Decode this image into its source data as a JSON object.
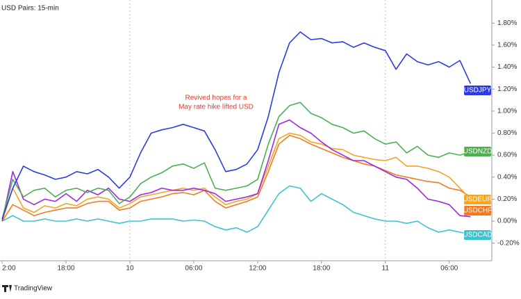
{
  "chart_data": {
    "type": "line",
    "title": "USD Pairs: 15-min",
    "annotation": [
      "Revived hopes for a",
      "May rate hike lifted USD"
    ],
    "watermark": "TradingView",
    "x": [
      12,
      13,
      14,
      15,
      16,
      17,
      18,
      19,
      20,
      21,
      22,
      23,
      24,
      25,
      26,
      27,
      28,
      29,
      30,
      31,
      32,
      33,
      34,
      35,
      36,
      37,
      38,
      39,
      40,
      41,
      42,
      43,
      44,
      45,
      46,
      47,
      48,
      49,
      50,
      51,
      52,
      53,
      54,
      55,
      56
    ],
    "xlim": [
      11.8,
      58
    ],
    "xticks": [
      {
        "value": 12,
        "label": "2:00"
      },
      {
        "value": 18,
        "label": "18:00"
      },
      {
        "value": 24,
        "label": "10"
      },
      {
        "value": 30,
        "label": "06:00"
      },
      {
        "value": 36,
        "label": "12:00"
      },
      {
        "value": 42,
        "label": "18:00"
      },
      {
        "value": 48,
        "label": "11"
      },
      {
        "value": 54,
        "label": "06:00"
      }
    ],
    "ylim": [
      -0.36,
      2.01
    ],
    "yticks": [
      {
        "value": 1.8,
        "label": "1.80%"
      },
      {
        "value": 1.6,
        "label": "1.60%"
      },
      {
        "value": 1.4,
        "label": "1.40%"
      },
      {
        "value": 1.2,
        "label": "1.20%"
      },
      {
        "value": 1.0,
        "label": "1.00%"
      },
      {
        "value": 0.8,
        "label": "0.80%"
      },
      {
        "value": 0.6,
        "label": "0.60%"
      },
      {
        "value": 0.4,
        "label": "0.40%"
      },
      {
        "value": 0.2,
        "label": "0.20%"
      },
      {
        "value": 0.0,
        "label": "0.00%"
      },
      {
        "value": -0.2,
        "label": "-0.20%"
      }
    ],
    "series": [
      {
        "name": "USDCAD",
        "color": "#3cc3cf",
        "values": [
          0.0,
          0.05,
          0.0,
          0.0,
          0.02,
          0.0,
          0.0,
          0.02,
          0.0,
          0.02,
          0.0,
          -0.02,
          0.0,
          0.0,
          0.02,
          0.02,
          0.02,
          0.0,
          0.01,
          0.0,
          -0.05,
          -0.08,
          -0.06,
          -0.1,
          -0.05,
          0.1,
          0.25,
          0.32,
          0.3,
          0.18,
          0.25,
          0.2,
          0.15,
          0.08,
          0.05,
          0.02,
          0.0,
          0.0,
          -0.02,
          0.0,
          -0.06,
          -0.1,
          -0.08,
          -0.1,
          -0.12
        ]
      },
      {
        "name": "USDCHF",
        "color": "#f57a1f",
        "values": [
          0.0,
          0.15,
          0.1,
          0.05,
          0.08,
          0.1,
          0.12,
          0.12,
          0.16,
          0.18,
          0.18,
          0.1,
          0.12,
          0.18,
          0.2,
          0.22,
          0.25,
          0.26,
          0.24,
          0.28,
          0.18,
          0.12,
          0.15,
          0.18,
          0.22,
          0.45,
          0.7,
          0.78,
          0.75,
          0.7,
          0.66,
          0.62,
          0.58,
          0.55,
          0.52,
          0.5,
          0.46,
          0.42,
          0.4,
          0.38,
          0.36,
          0.35,
          0.3,
          0.28,
          0.22
        ]
      },
      {
        "name": "USDEUR",
        "color": "#f4a521",
        "values": [
          0.0,
          0.3,
          0.12,
          0.08,
          0.14,
          0.12,
          0.16,
          0.14,
          0.2,
          0.22,
          0.2,
          0.12,
          0.16,
          0.22,
          0.24,
          0.26,
          0.28,
          0.3,
          0.28,
          0.3,
          0.22,
          0.15,
          0.18,
          0.2,
          0.25,
          0.5,
          0.75,
          0.8,
          0.78,
          0.72,
          0.7,
          0.66,
          0.65,
          0.6,
          0.58,
          0.56,
          0.55,
          0.58,
          0.5,
          0.5,
          0.48,
          0.45,
          0.4,
          0.3,
          0.2
        ]
      },
      {
        "color": "#9b27e8",
        "values": [
          0.0,
          0.45,
          0.2,
          0.15,
          0.2,
          0.18,
          0.25,
          0.18,
          0.28,
          0.24,
          0.3,
          0.2,
          0.18,
          0.24,
          0.26,
          0.3,
          0.28,
          0.28,
          0.3,
          0.28,
          0.25,
          0.18,
          0.2,
          0.22,
          0.25,
          0.55,
          0.88,
          0.92,
          0.85,
          0.8,
          0.72,
          0.65,
          0.6,
          0.55,
          0.55,
          0.5,
          0.45,
          0.4,
          0.38,
          0.3,
          0.2,
          0.18,
          0.15,
          0.05,
          0.04
        ]
      },
      {
        "name": "USDNZD",
        "color": "#4caf50",
        "values": [
          0.02,
          0.38,
          0.22,
          0.28,
          0.3,
          0.22,
          0.28,
          0.3,
          0.26,
          0.3,
          0.28,
          0.16,
          0.22,
          0.34,
          0.4,
          0.44,
          0.5,
          0.52,
          0.48,
          0.53,
          0.3,
          0.28,
          0.3,
          0.32,
          0.38,
          0.7,
          0.95,
          1.05,
          1.08,
          0.98,
          0.94,
          0.88,
          0.85,
          0.8,
          0.82,
          0.75,
          0.7,
          0.72,
          0.62,
          0.68,
          0.6,
          0.58,
          0.62,
          0.6,
          0.63
        ]
      },
      {
        "name": "USDJPY",
        "color": "#2b3be0",
        "values": [
          0.02,
          0.3,
          0.5,
          0.45,
          0.42,
          0.38,
          0.4,
          0.45,
          0.43,
          0.47,
          0.4,
          0.3,
          0.4,
          0.62,
          0.8,
          0.83,
          0.85,
          0.88,
          0.85,
          0.82,
          0.65,
          0.45,
          0.47,
          0.52,
          0.65,
          0.95,
          1.35,
          1.62,
          1.72,
          1.65,
          1.66,
          1.62,
          1.63,
          1.58,
          1.62,
          1.58,
          1.55,
          1.38,
          1.52,
          1.45,
          1.42,
          1.45,
          1.4,
          1.46,
          1.25
        ]
      }
    ]
  }
}
